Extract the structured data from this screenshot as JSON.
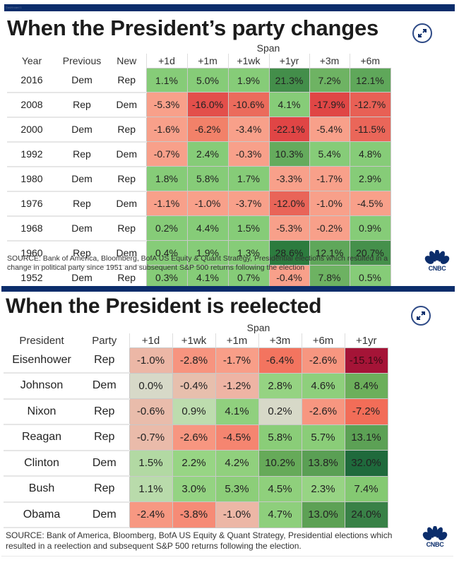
{
  "top_bar_label": "Dashboard 1",
  "chart_data": [
    {
      "type": "table",
      "title": "When the President’s party changes",
      "span_label": "Span",
      "label_columns": [
        "Year",
        "Previous",
        "New"
      ],
      "columns": [
        "+1d",
        "+1m",
        "+1wk",
        "+1yr",
        "+3m",
        "+6m"
      ],
      "rows": [
        {
          "labels": [
            "2016",
            "Dem",
            "Rep"
          ],
          "values": [
            1.1,
            5.0,
            1.9,
            21.3,
            7.2,
            12.1
          ]
        },
        {
          "labels": [
            "2008",
            "Rep",
            "Dem"
          ],
          "values": [
            -5.3,
            -16.0,
            -10.6,
            4.1,
            -17.9,
            -12.7
          ]
        },
        {
          "labels": [
            "2000",
            "Dem",
            "Rep"
          ],
          "values": [
            -1.6,
            -6.2,
            -3.4,
            -22.1,
            -5.4,
            -11.5
          ]
        },
        {
          "labels": [
            "1992",
            "Rep",
            "Dem"
          ],
          "values": [
            -0.7,
            2.4,
            -0.3,
            10.3,
            5.4,
            4.8
          ]
        },
        {
          "labels": [
            "1980",
            "Dem",
            "Rep"
          ],
          "values": [
            1.8,
            5.8,
            1.7,
            -3.3,
            -1.7,
            2.9
          ]
        },
        {
          "labels": [
            "1976",
            "Rep",
            "Dem"
          ],
          "values": [
            -1.1,
            -1.0,
            -3.7,
            -12.0,
            -1.0,
            -4.5
          ]
        },
        {
          "labels": [
            "1968",
            "Dem",
            "Rep"
          ],
          "values": [
            0.2,
            4.4,
            1.5,
            -5.3,
            -0.2,
            0.9
          ]
        },
        {
          "labels": [
            "1960",
            "Rep",
            "Dem"
          ],
          "values": [
            0.4,
            1.9,
            1.3,
            28.6,
            12.1,
            20.7
          ]
        },
        {
          "labels": [
            "1952",
            "Dem",
            "Rep"
          ],
          "values": [
            0.3,
            4.1,
            0.7,
            -0.4,
            7.8,
            0.5
          ]
        }
      ],
      "source": "SOURCE: Bank of America, Bloomberg, BofA US Equity & Quant Strategy, Presidential elections which resulted in a change in political party since 1951 and subsequent S&P 500 returns following the election",
      "unit": "%"
    },
    {
      "type": "table",
      "title": "When the President is reelected",
      "span_label": "Span",
      "label_columns": [
        "President",
        "Party"
      ],
      "columns": [
        "+1d",
        "+1wk",
        "+1m",
        "+3m",
        "+6m",
        "+1yr"
      ],
      "rows": [
        {
          "labels": [
            "Eisenhower",
            "Rep"
          ],
          "values": [
            -1.0,
            -2.8,
            -1.7,
            -6.4,
            -2.6,
            -15.1
          ]
        },
        {
          "labels": [
            "Johnson",
            "Dem"
          ],
          "values": [
            0.0,
            -0.4,
            -1.2,
            2.8,
            4.6,
            8.4
          ]
        },
        {
          "labels": [
            "Nixon",
            "Rep"
          ],
          "values": [
            -0.6,
            0.9,
            4.1,
            0.2,
            -2.6,
            -7.2
          ]
        },
        {
          "labels": [
            "Reagan",
            "Rep"
          ],
          "values": [
            -0.7,
            -2.6,
            -4.5,
            5.8,
            5.7,
            13.1
          ]
        },
        {
          "labels": [
            "Clinton",
            "Dem"
          ],
          "values": [
            1.5,
            2.2,
            4.2,
            10.2,
            13.8,
            32.0
          ]
        },
        {
          "labels": [
            "Bush",
            "Rep"
          ],
          "values": [
            1.1,
            3.0,
            5.3,
            4.5,
            2.3,
            7.4
          ]
        },
        {
          "labels": [
            "Obama",
            "Dem"
          ],
          "values": [
            -2.4,
            -3.8,
            -1.0,
            4.7,
            13.0,
            24.0
          ]
        }
      ],
      "source": "SOURCE: Bank of America, Bloomberg, BofA US Equity & Quant Strategy, Presidential elections which resulted in a reelection and subsequent S&P 500 returns following the election.",
      "unit": "%"
    }
  ],
  "logo_text": "CNBC",
  "icons": {
    "expand": "expand-icon",
    "logo": "cnbc-peacock-icon"
  },
  "colors": {
    "brand_navy": "#0b2d6b",
    "positive_light": "#86cc78",
    "positive_dark": "#2b7a3d",
    "negative_light": "#f8a08a",
    "negative_dark": "#e04545",
    "negative_extreme": "#a51437",
    "neutral": "#d7d9c8"
  }
}
